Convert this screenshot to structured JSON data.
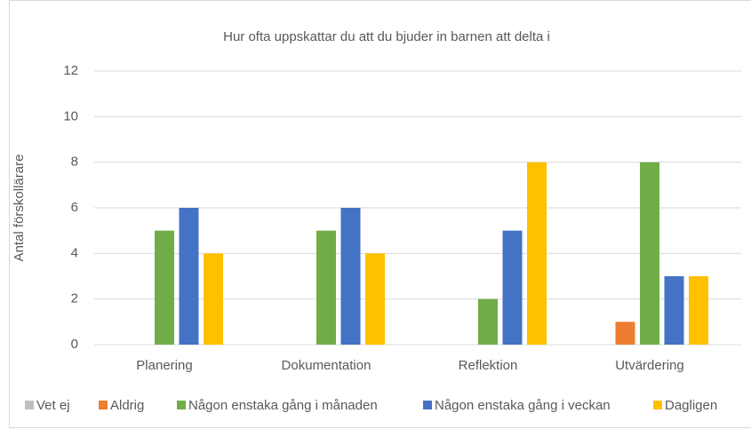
{
  "chart_data": {
    "type": "bar",
    "title": "Hur ofta uppskattar du att du bjuder in barnen att delta i",
    "y_label": "Antal förskollärare",
    "categories": [
      "Planering",
      "Dokumentation",
      "Reflektion",
      "Utvärdering"
    ],
    "series": [
      {
        "name": "Vet ej",
        "color": "#bfbfbf",
        "values": [
          0,
          0,
          0,
          0
        ]
      },
      {
        "name": "Aldrig",
        "color": "#ed7d31",
        "values": [
          0,
          0,
          0,
          1
        ]
      },
      {
        "name": "Någon enstaka gång i månaden",
        "color": "#70ad47",
        "values": [
          5,
          5,
          2,
          8
        ]
      },
      {
        "name": "Någon enstaka gång i veckan",
        "color": "#4472c4",
        "values": [
          6,
          6,
          5,
          3
        ]
      },
      {
        "name": "Dagligen",
        "color": "#ffc000",
        "values": [
          4,
          4,
          8,
          3
        ]
      }
    ],
    "ylim": [
      0,
      12
    ],
    "yticks": [
      0,
      2,
      4,
      6,
      8,
      10,
      12
    ],
    "grid": true,
    "legend": "bottom"
  }
}
